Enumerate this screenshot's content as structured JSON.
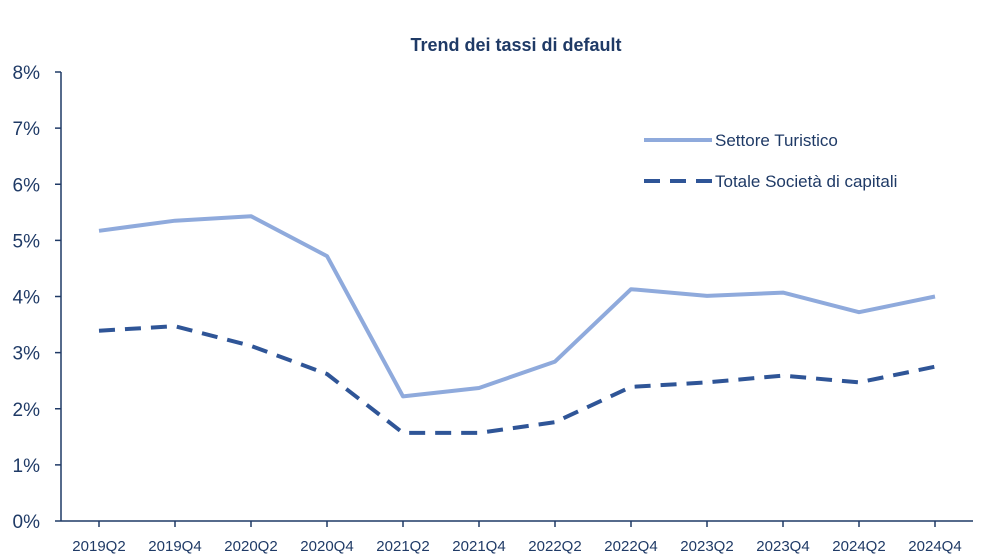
{
  "chart_data": {
    "type": "line",
    "title": "Trend dei tassi di default",
    "xlabel": "",
    "ylabel": "",
    "categories": [
      "2019Q2",
      "2019Q4",
      "2020Q2",
      "2020Q4",
      "2021Q2",
      "2021Q4",
      "2022Q2",
      "2022Q4",
      "2023Q2",
      "2023Q4",
      "2024Q2",
      "2024Q4"
    ],
    "y_ticks": [
      "0%",
      "1%",
      "2%",
      "3%",
      "4%",
      "5%",
      "6%",
      "7%",
      "8%"
    ],
    "ylim": [
      0,
      8
    ],
    "grid": false,
    "legend_position": "top-right",
    "series": [
      {
        "name": "Settore Turistico",
        "style": "solid",
        "color": "#8faadc",
        "values": [
          5.17,
          5.35,
          5.43,
          4.72,
          2.22,
          2.37,
          2.84,
          4.13,
          4.01,
          4.07,
          3.72,
          4.0
        ]
      },
      {
        "name": "Totale Società di capitali",
        "style": "dashed",
        "color": "#2f5597",
        "values": [
          3.39,
          3.47,
          3.12,
          2.62,
          1.57,
          1.57,
          1.76,
          2.39,
          2.47,
          2.59,
          2.47,
          2.75
        ]
      }
    ]
  }
}
